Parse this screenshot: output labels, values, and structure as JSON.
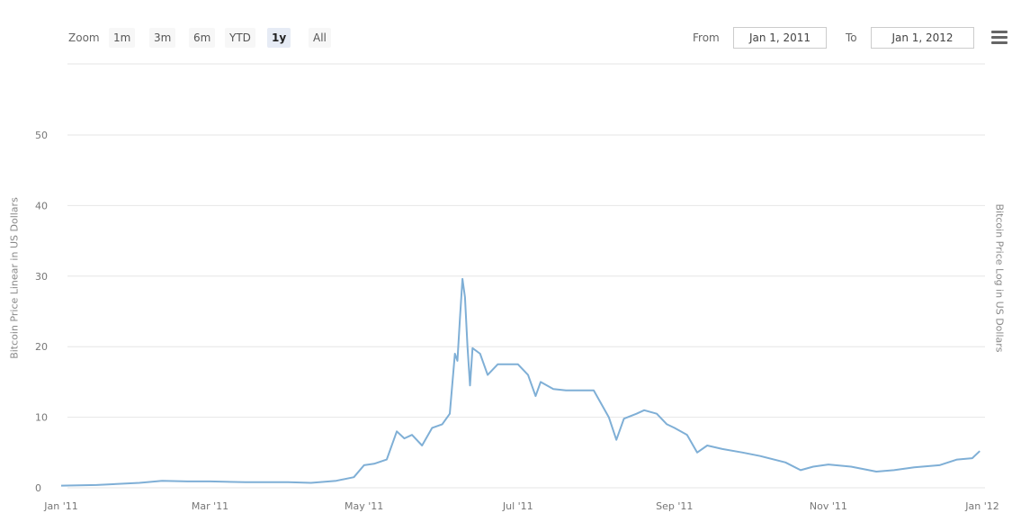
{
  "toolbar": {
    "zoom_label": "Zoom",
    "zoom_buttons": [
      {
        "label": "1m",
        "active": false
      },
      {
        "label": "3m",
        "active": false
      },
      {
        "label": "6m",
        "active": false
      },
      {
        "label": "YTD",
        "active": false
      },
      {
        "label": "1y",
        "active": true
      },
      {
        "label": "All",
        "active": false
      }
    ],
    "from_label": "From",
    "from_value": "Jan 1, 2011",
    "to_label": "To",
    "to_value": "Jan 1, 2012"
  },
  "chart_data": {
    "type": "line",
    "title": "",
    "ylabel": "Bitcoin Price Linear in US Dollars",
    "ylabel_right": "Bitcoin Price Log in US Dollars",
    "xlabel": "",
    "ylim": [
      0,
      50
    ],
    "yticks": [
      0,
      10,
      20,
      30,
      40,
      50
    ],
    "xlim": [
      "2011-01-01",
      "2012-01-01"
    ],
    "xticks": [
      {
        "date": "2011-01-01",
        "label": "Jan '11"
      },
      {
        "date": "2011-03-01",
        "label": "Mar '11"
      },
      {
        "date": "2011-05-01",
        "label": "May '11"
      },
      {
        "date": "2011-07-01",
        "label": "Jul '11"
      },
      {
        "date": "2011-09-01",
        "label": "Sep '11"
      },
      {
        "date": "2011-11-01",
        "label": "Nov '11"
      },
      {
        "date": "2012-01-01",
        "label": "Jan '12"
      }
    ],
    "grid": true,
    "line_color": "#7fafd6",
    "series": [
      {
        "points": [
          [
            "2011-01-01",
            0.3
          ],
          [
            "2011-01-15",
            0.4
          ],
          [
            "2011-02-01",
            0.7
          ],
          [
            "2011-02-10",
            1.0
          ],
          [
            "2011-02-20",
            0.9
          ],
          [
            "2011-03-01",
            0.9
          ],
          [
            "2011-03-15",
            0.8
          ],
          [
            "2011-04-01",
            0.8
          ],
          [
            "2011-04-10",
            0.7
          ],
          [
            "2011-04-20",
            1.0
          ],
          [
            "2011-04-27",
            1.5
          ],
          [
            "2011-05-01",
            3.2
          ],
          [
            "2011-05-05",
            3.4
          ],
          [
            "2011-05-10",
            4.0
          ],
          [
            "2011-05-14",
            8.0
          ],
          [
            "2011-05-17",
            7.0
          ],
          [
            "2011-05-20",
            7.5
          ],
          [
            "2011-05-24",
            6.0
          ],
          [
            "2011-05-28",
            8.5
          ],
          [
            "2011-06-01",
            9.0
          ],
          [
            "2011-06-04",
            10.5
          ],
          [
            "2011-06-06",
            19.0
          ],
          [
            "2011-06-07",
            18.0
          ],
          [
            "2011-06-08",
            24.0
          ],
          [
            "2011-06-09",
            29.6
          ],
          [
            "2011-06-10",
            27.0
          ],
          [
            "2011-06-11",
            20.0
          ],
          [
            "2011-06-12",
            14.5
          ],
          [
            "2011-06-13",
            19.8
          ],
          [
            "2011-06-16",
            19.0
          ],
          [
            "2011-06-19",
            16.0
          ],
          [
            "2011-06-23",
            17.5
          ],
          [
            "2011-07-01",
            17.5
          ],
          [
            "2011-07-05",
            16.0
          ],
          [
            "2011-07-08",
            13.0
          ],
          [
            "2011-07-10",
            15.0
          ],
          [
            "2011-07-15",
            14.0
          ],
          [
            "2011-07-20",
            13.8
          ],
          [
            "2011-07-31",
            13.8
          ],
          [
            "2011-08-06",
            10.0
          ],
          [
            "2011-08-09",
            6.8
          ],
          [
            "2011-08-12",
            9.8
          ],
          [
            "2011-08-17",
            10.5
          ],
          [
            "2011-08-20",
            11.0
          ],
          [
            "2011-08-25",
            10.5
          ],
          [
            "2011-08-29",
            9.0
          ],
          [
            "2011-09-01",
            8.5
          ],
          [
            "2011-09-06",
            7.5
          ],
          [
            "2011-09-10",
            5.0
          ],
          [
            "2011-09-14",
            6.0
          ],
          [
            "2011-09-20",
            5.5
          ],
          [
            "2011-09-28",
            5.0
          ],
          [
            "2011-10-05",
            4.5
          ],
          [
            "2011-10-15",
            3.6
          ],
          [
            "2011-10-21",
            2.5
          ],
          [
            "2011-10-26",
            3.0
          ],
          [
            "2011-11-01",
            3.3
          ],
          [
            "2011-11-10",
            3.0
          ],
          [
            "2011-11-20",
            2.3
          ],
          [
            "2011-11-27",
            2.5
          ],
          [
            "2011-12-05",
            2.9
          ],
          [
            "2011-12-15",
            3.2
          ],
          [
            "2011-12-22",
            4.0
          ],
          [
            "2011-12-28",
            4.2
          ],
          [
            "2011-12-31",
            5.2
          ]
        ]
      }
    ]
  }
}
